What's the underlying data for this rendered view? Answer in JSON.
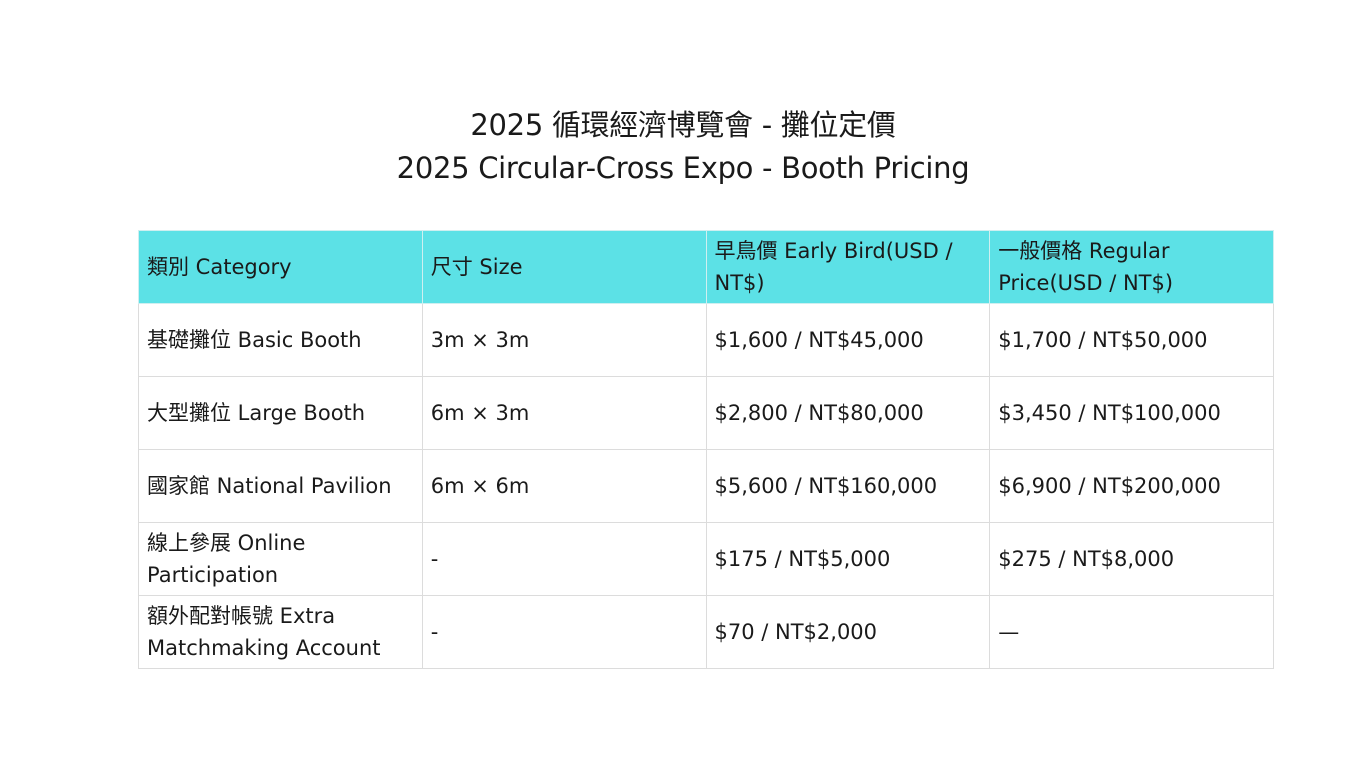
{
  "title": {
    "line1": "2025 循環經濟博覽會 - 攤位定價",
    "line2": "2025 Circular-Cross Expo - Booth Pricing"
  },
  "table": {
    "header_color": "#5ce1e6",
    "headers": [
      "類別 Category",
      "尺寸 Size",
      "早鳥價 Early Bird(USD / NT$)",
      "一般價格 Regular Price(USD / NT$)"
    ],
    "rows": [
      [
        "基礎攤位 Basic Booth",
        "3m × 3m",
        "$1,600 / NT$45,000",
        "$1,700 / NT$50,000"
      ],
      [
        "大型攤位 Large Booth",
        "6m × 3m",
        "$2,800 / NT$80,000",
        "$3,450 / NT$100,000"
      ],
      [
        "國家館 National Pavilion",
        "6m × 6m",
        "$5,600 / NT$160,000",
        "$6,900 / NT$200,000"
      ],
      [
        "線上參展 Online Participation",
        "-",
        "$175 / NT$5,000",
        "$275 / NT$8,000"
      ],
      [
        "額外配對帳號 Extra Matchmaking Account",
        "-",
        "$70 / NT$2,000",
        "—"
      ]
    ]
  }
}
